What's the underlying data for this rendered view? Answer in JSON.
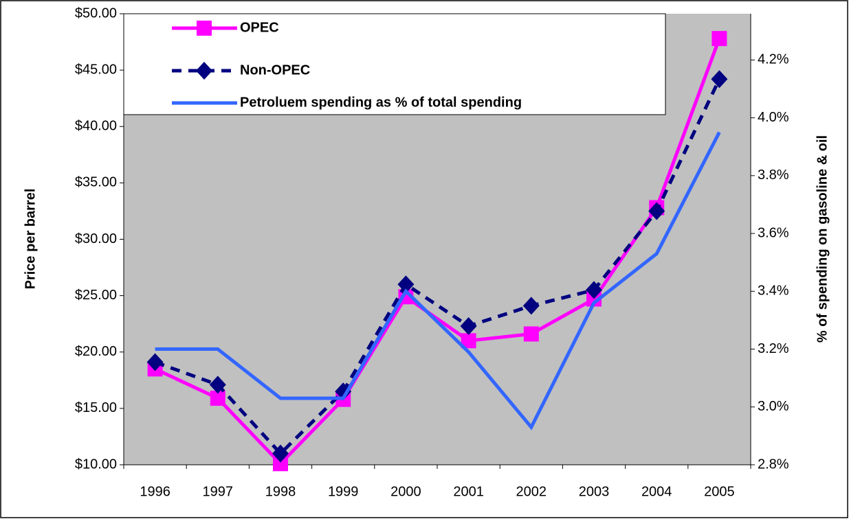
{
  "chart_data": {
    "type": "line",
    "categories": [
      "1996",
      "1997",
      "1998",
      "1999",
      "2000",
      "2001",
      "2002",
      "2003",
      "2004",
      "2005"
    ],
    "series": [
      {
        "name": "OPEC",
        "color": "#ff00ff",
        "marker": "square",
        "linestyle": "solid",
        "values": [
          18.5,
          15.9,
          10.1,
          15.8,
          24.9,
          21.0,
          21.6,
          24.7,
          32.8,
          47.8
        ]
      },
      {
        "name": "Non-OPEC",
        "color": "#000080",
        "marker": "diamond",
        "linestyle": "dashed",
        "values": [
          19.1,
          17.1,
          11.0,
          16.5,
          26.0,
          22.3,
          24.1,
          25.5,
          32.5,
          44.2
        ]
      },
      {
        "name": "Petroluem spending as % of total spending",
        "color": "#3366ff",
        "linestyle": "solid",
        "axis": "y2",
        "values": [
          3.2,
          3.2,
          3.03,
          3.03,
          3.4,
          3.19,
          2.93,
          3.36,
          3.53,
          3.95
        ]
      }
    ],
    "ylabel": "Price per barrel",
    "y2label": "% of spending on gasoline & oil",
    "ylim": [
      10,
      50
    ],
    "yticks": [
      {
        "value": 10,
        "label": "$10.00"
      },
      {
        "value": 15,
        "label": "$15.00"
      },
      {
        "value": 20,
        "label": "$20.00"
      },
      {
        "value": 25,
        "label": "$25.00"
      },
      {
        "value": 30,
        "label": "$30.00"
      },
      {
        "value": 35,
        "label": "$35.00"
      },
      {
        "value": 40,
        "label": "$40.00"
      },
      {
        "value": 45,
        "label": "$45.00"
      },
      {
        "value": 50,
        "label": "$50.00"
      }
    ],
    "y2lim": [
      2.8,
      4.36
    ],
    "y2ticks": [
      {
        "value": 2.8,
        "label": "2.8%"
      },
      {
        "value": 3.0,
        "label": "3.0%"
      },
      {
        "value": 3.2,
        "label": "3.2%"
      },
      {
        "value": 3.4,
        "label": "3.4%"
      },
      {
        "value": 3.6,
        "label": "3.6%"
      },
      {
        "value": 3.8,
        "label": "3.8%"
      },
      {
        "value": 4.0,
        "label": "4.0%"
      },
      {
        "value": 4.2,
        "label": "4.2%"
      }
    ],
    "plot_background": "#c0c0c0"
  }
}
